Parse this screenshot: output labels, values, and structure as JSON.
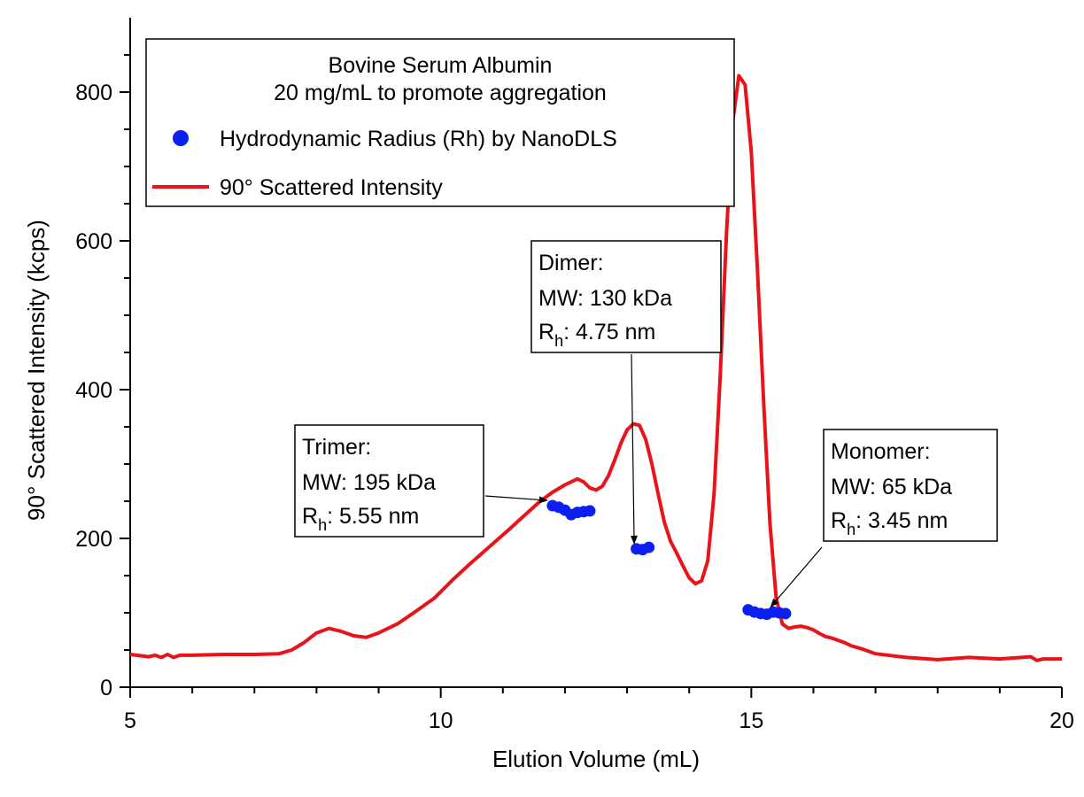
{
  "chart_data": {
    "type": "line",
    "xlabel": "Elution Volume (mL)",
    "ylabel": "90° Scattered Intensity (kcps)",
    "xlim": [
      5,
      20
    ],
    "ylim": [
      0,
      900
    ],
    "xticks": [
      "5",
      "10",
      "15",
      "20"
    ],
    "yticks": [
      "0",
      "200",
      "400",
      "600",
      "800"
    ],
    "legend": {
      "placement": "top-left",
      "title_line1": "Bovine Serum Albumin",
      "title_line2": "20 mg/mL to promote aggregation",
      "entries": [
        {
          "label": "Hydrodynamic Radius (Rh) by NanoDLS",
          "marker": "dot",
          "color": "#0a1ff0"
        },
        {
          "label": "90° Scattered Intensity",
          "marker": "line",
          "color": "#e8141b"
        }
      ]
    },
    "series": [
      {
        "name": "90° Scattered Intensity",
        "color": "#e8141b",
        "x": [
          5.0,
          5.3,
          5.4,
          5.5,
          5.6,
          5.7,
          5.8,
          6.0,
          6.5,
          7.0,
          7.4,
          7.6,
          7.8,
          8.0,
          8.2,
          8.4,
          8.6,
          8.8,
          9.0,
          9.3,
          9.6,
          9.9,
          10.2,
          10.5,
          10.8,
          11.1,
          11.4,
          11.6,
          11.8,
          12.0,
          12.1,
          12.2,
          12.3,
          12.4,
          12.5,
          12.6,
          12.7,
          12.8,
          12.9,
          13.0,
          13.1,
          13.2,
          13.3,
          13.4,
          13.5,
          13.6,
          13.7,
          13.8,
          13.9,
          14.0,
          14.1,
          14.2,
          14.3,
          14.4,
          14.5,
          14.6,
          14.7,
          14.8,
          14.9,
          15.0,
          15.1,
          15.2,
          15.3,
          15.4,
          15.5,
          15.6,
          15.7,
          15.8,
          15.9,
          16.0,
          16.1,
          16.2,
          16.3,
          16.4,
          16.5,
          16.6,
          16.8,
          17.0,
          17.5,
          18.0,
          18.5,
          19.0,
          19.5,
          19.6,
          19.7,
          20.0
        ],
        "y": [
          44,
          41,
          43,
          40,
          44,
          40,
          43,
          43,
          44,
          44,
          45,
          50,
          60,
          73,
          79,
          75,
          69,
          67,
          73,
          85,
          102,
          120,
          145,
          168,
          190,
          212,
          235,
          250,
          262,
          272,
          276,
          280,
          276,
          268,
          265,
          270,
          284,
          305,
          328,
          346,
          354,
          352,
          333,
          300,
          260,
          222,
          196,
          180,
          163,
          147,
          139,
          143,
          170,
          260,
          420,
          610,
          760,
          822,
          810,
          720,
          560,
          380,
          220,
          120,
          85,
          79,
          81,
          82,
          80,
          77,
          72,
          68,
          66,
          63,
          60,
          56,
          51,
          45,
          40,
          37,
          40,
          38,
          41,
          36,
          38,
          38
        ]
      },
      {
        "name": "Hydrodynamic Radius (Rh) by NanoDLS",
        "color": "#0a1ff0",
        "x": [
          11.8,
          11.9,
          12.0,
          12.1,
          12.2,
          12.3,
          12.4,
          13.15,
          13.25,
          13.35,
          14.95,
          15.05,
          15.15,
          15.25,
          15.35,
          15.45,
          15.55
        ],
        "y": [
          244,
          242,
          238,
          232,
          235,
          236,
          237,
          186,
          185,
          188,
          104,
          101,
          99,
          98,
          101,
          100,
          99
        ]
      }
    ],
    "annotations": [
      {
        "name": "trimer",
        "line1": "Trimer:",
        "line2": "MW:  195 kDa",
        "rh_label": "R",
        "rh_sub": "h",
        "rh_value": ":  5.55 nm",
        "target_x": 11.8,
        "target_y": 244
      },
      {
        "name": "dimer",
        "line1": "Dimer:",
        "line2": "MW:  130 kDa",
        "rh_label": "R",
        "rh_sub": "h",
        "rh_value": ":  4.75 nm",
        "target_x": 13.2,
        "target_y": 186
      },
      {
        "name": "monomer",
        "line1": "Monomer:",
        "line2": "MW:  65 kDa",
        "rh_label": "R",
        "rh_sub": "h",
        "rh_value": ":  3.45 nm",
        "target_x": 15.4,
        "target_y": 101
      }
    ]
  }
}
